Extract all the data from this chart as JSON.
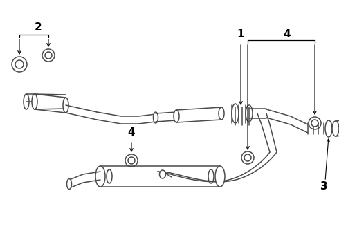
{
  "bg_color": "#ffffff",
  "line_color": "#4a4a4a",
  "text_color": "#000000",
  "fig_width": 4.9,
  "fig_height": 3.6,
  "dpi": 100
}
